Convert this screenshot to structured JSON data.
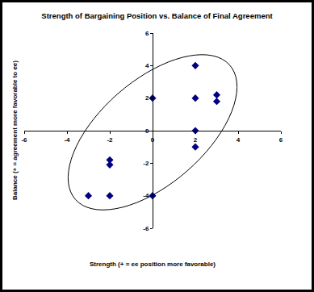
{
  "chart_data": {
    "type": "scatter",
    "title": "Strength of Bargaining Position vs. Balance of Final Agreement",
    "x_label": "Strength (+ = ee position more favorable)",
    "y_label": "Balance (+ = agreement more favorable to ee)",
    "x": [
      -3,
      -2,
      -2,
      -2,
      0,
      0,
      2,
      2,
      2,
      2,
      3,
      3
    ],
    "values": [
      -4,
      -4,
      -1.8,
      -2.1,
      -4,
      2,
      4,
      2,
      0,
      -1,
      2.2,
      1.8
    ],
    "color": "#000080",
    "marker": "diamond",
    "xlim": [
      -6,
      6
    ],
    "ylim": [
      -6,
      6
    ],
    "xticks": [
      -6,
      -4,
      -2,
      0,
      2,
      4,
      6
    ],
    "yticks": [
      -6,
      -4,
      -2,
      0,
      2,
      4,
      6
    ],
    "grid": false
  }
}
